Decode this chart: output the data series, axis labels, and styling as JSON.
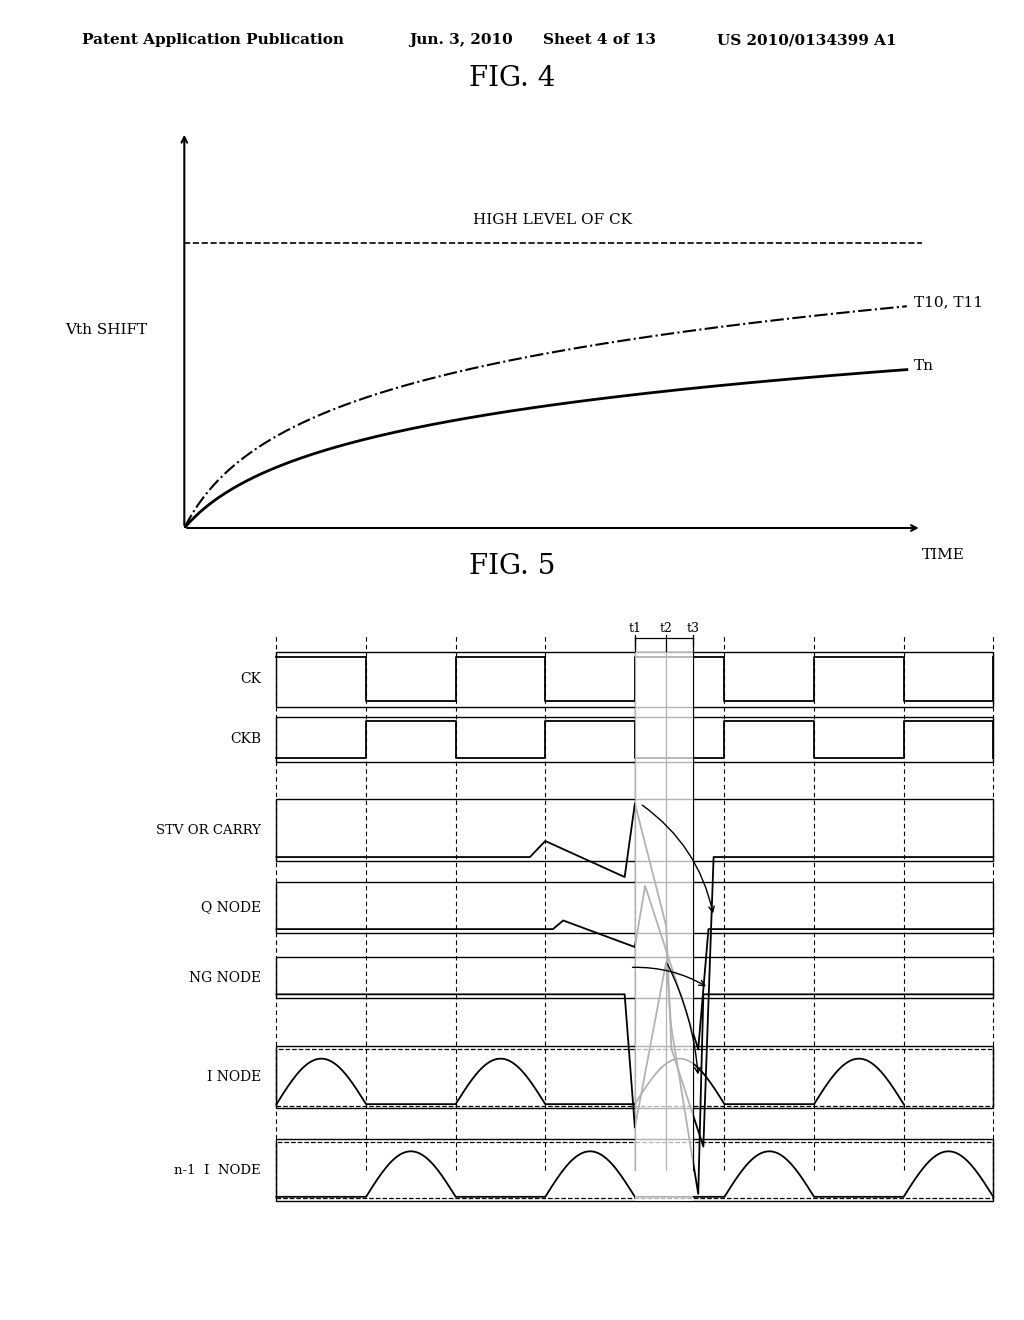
{
  "bg_color": "#ffffff",
  "header_text": "Patent Application Publication",
  "header_date": "Jun. 3, 2010",
  "header_sheet": "Sheet 4 of 13",
  "header_patent": "US 2010/0134399 A1",
  "fig4_title": "FIG. 4",
  "fig5_title": "FIG. 5",
  "fig4_ylabel": "Vth SHIFT",
  "fig4_xlabel": "TIME",
  "fig4_dashed_label": "HIGH LEVEL OF CK",
  "fig4_curve1_label": "T10, T11",
  "fig4_curve2_label": "Tn",
  "fig5_labels": [
    "CK",
    "CKB",
    "STV OR CARRY",
    "Q NODE",
    "NG NODE",
    "I NODE",
    "n-1  I  NODE"
  ],
  "fig5_time_labels": [
    "t1",
    "t2",
    "t3"
  ]
}
